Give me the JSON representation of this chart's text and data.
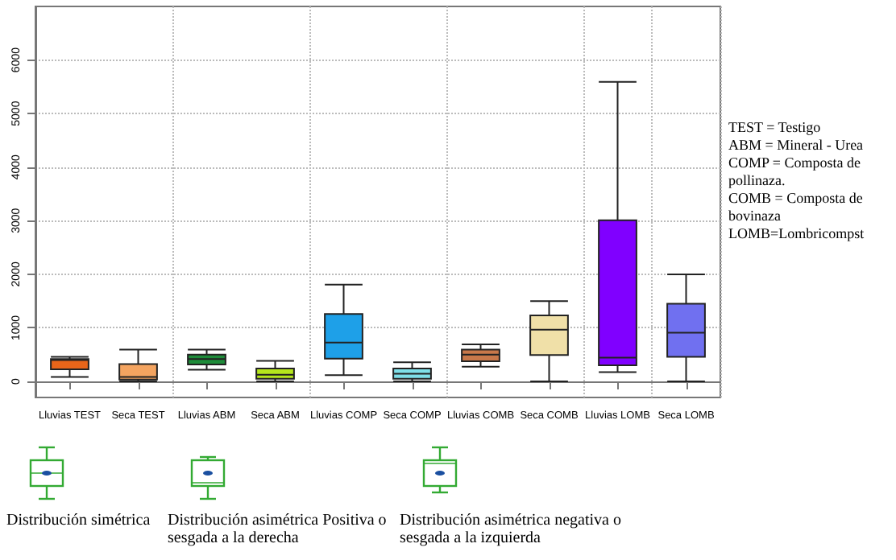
{
  "chart_data": {
    "type": "box",
    "categories": [
      "Lluvias TEST",
      "Seca TEST",
      "Lluvias ABM",
      "Seca ABM",
      "Lluvias COMP",
      "Seca COMP",
      "Lluvias COMB",
      "Seca COMB",
      "Lluvias LOMB",
      "Seca LOMB"
    ],
    "boxes": [
      {
        "low": 83,
        "q1": 225,
        "median": 400,
        "q3": 417,
        "high": 458
      },
      {
        "low": 0,
        "q1": 33,
        "median": 83,
        "q3": 325,
        "high": 592
      },
      {
        "low": 217,
        "q1": 317,
        "median": 417,
        "q3": 500,
        "high": 592
      },
      {
        "low": 0,
        "q1": 50,
        "median": 125,
        "q3": 242,
        "high": 383
      },
      {
        "low": 117,
        "q1": 425,
        "median": 725,
        "q3": 1258,
        "high": 1808
      },
      {
        "low": 0,
        "q1": 50,
        "median": 142,
        "q3": 242,
        "high": 358
      },
      {
        "low": 275,
        "q1": 375,
        "median": 500,
        "q3": 592,
        "high": 692
      },
      {
        "low": 0,
        "q1": 492,
        "median": 967,
        "q3": 1233,
        "high": 1500
      },
      {
        "low": 175,
        "q1": 300,
        "median": 442,
        "q3": 3008,
        "high": 5592
      },
      {
        "low": 0,
        "q1": 458,
        "median": 908,
        "q3": 1450,
        "high": 2000
      }
    ],
    "colors": [
      "#e8651a",
      "#f4a460",
      "#1e8c3a",
      "#b5e61d",
      "#1ea0e8",
      "#7fdfe8",
      "#c8784a",
      "#f0e0a8",
      "#8000ff",
      "#7070f0"
    ],
    "ylim": [
      -300,
      7000
    ],
    "yticks": [
      0,
      1000,
      2000,
      3000,
      4000,
      5000,
      6000
    ],
    "grid": true,
    "annotations": [
      "TEST = Testigo",
      "ABM = Mineral - Urea",
      "COMP = Composta de pollinaza.",
      "COMB = Composta de bovinaza",
      "LOMB=Lombricompst",
      "Distribución simétrica",
      "Distribución asimétrica Positiva o sesgada a la derecha",
      "Distribución asimétrica negativa o sesgada a la izquierda"
    ]
  }
}
